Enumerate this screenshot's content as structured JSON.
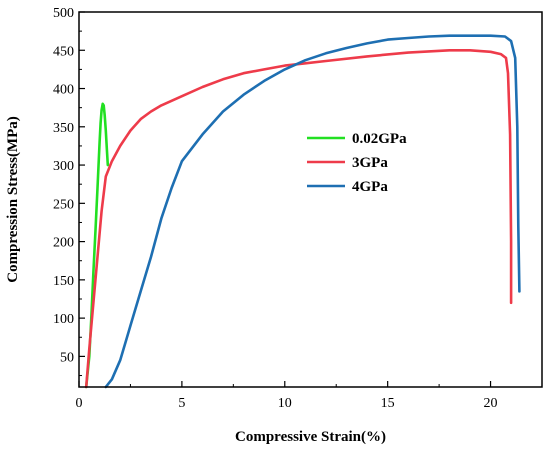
{
  "chart_data": {
    "type": "line",
    "title": "",
    "xlabel": "Compressive Strain(%)",
    "ylabel": "Compression Stress(MPa)",
    "xlim": [
      0,
      22.5
    ],
    "ylim": [
      10,
      500
    ],
    "xticks": [
      0,
      5,
      10,
      15,
      20
    ],
    "yticks": [
      50,
      100,
      150,
      200,
      250,
      300,
      350,
      400,
      450,
      500
    ],
    "grid": false,
    "legend_position": "center-left",
    "series": [
      {
        "name": "0.02GPa",
        "color": "#22e022",
        "x": [
          0.35,
          0.5,
          0.6,
          0.7,
          0.8,
          0.9,
          1.0,
          1.05,
          1.1,
          1.15,
          1.2,
          1.25,
          1.3,
          1.35,
          1.4
        ],
        "y": [
          10,
          50,
          100,
          160,
          215,
          270,
          330,
          355,
          372,
          380,
          378,
          365,
          345,
          322,
          300
        ]
      },
      {
        "name": "3GPa",
        "color": "#ee3b4a",
        "x": [
          0.35,
          0.5,
          0.7,
          0.9,
          1.1,
          1.3,
          1.6,
          2.0,
          2.5,
          3.0,
          3.5,
          4.0,
          5.0,
          6.0,
          7.0,
          8.0,
          9.0,
          10.0,
          11.0,
          12.0,
          14.0,
          16.0,
          18.0,
          19.0,
          20.0,
          20.5,
          20.75,
          20.85,
          20.95,
          21.0,
          21.0
        ],
        "y": [
          10,
          60,
          120,
          180,
          240,
          285,
          305,
          325,
          345,
          360,
          370,
          378,
          390,
          402,
          412,
          420,
          425,
          430,
          433,
          436,
          442,
          447,
          450,
          450,
          448,
          445,
          440,
          420,
          340,
          200,
          120
        ]
      },
      {
        "name": "4GPa",
        "color": "#1e6fb2",
        "x": [
          1.3,
          1.6,
          2.0,
          2.5,
          3.0,
          3.5,
          4.0,
          4.5,
          5.0,
          6.0,
          7.0,
          8.0,
          9.0,
          10.0,
          11.0,
          12.0,
          13.0,
          14.0,
          15.0,
          16.0,
          17.0,
          18.0,
          19.0,
          20.0,
          20.7,
          21.0,
          21.2,
          21.3,
          21.35,
          21.4
        ],
        "y": [
          10,
          20,
          45,
          90,
          135,
          180,
          230,
          270,
          305,
          340,
          370,
          392,
          410,
          425,
          437,
          446,
          453,
          459,
          464,
          466,
          468,
          469,
          469,
          469,
          468,
          462,
          440,
          350,
          220,
          135
        ]
      }
    ]
  }
}
